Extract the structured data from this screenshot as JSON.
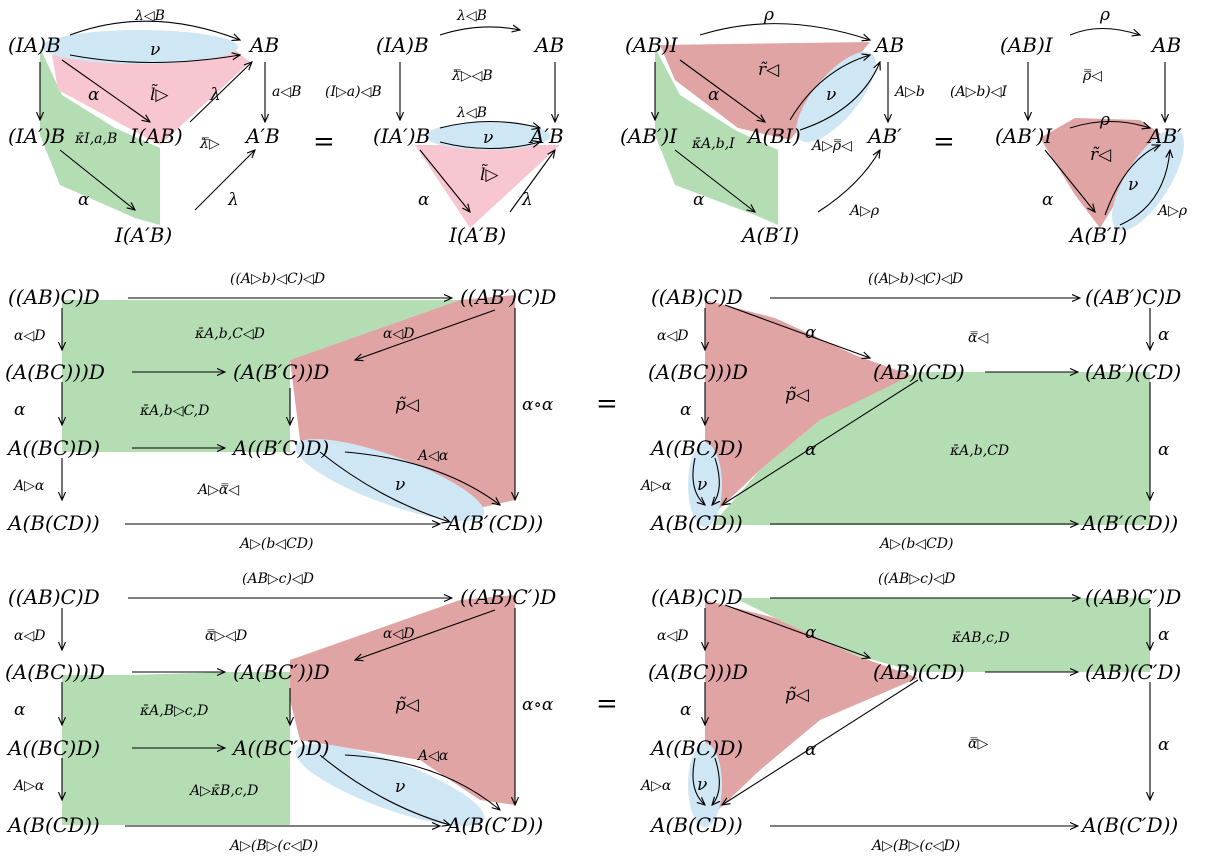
{
  "equals_sign": "=",
  "d1": {
    "objects": {
      "IA_B": "(IA)B",
      "AB": "AB",
      "IAp_B": "(IA′)B",
      "I_AB": "I(AB)",
      "ApB": "A′B",
      "I_ApB": "I(A′B)"
    },
    "labels": {
      "lam_lB": "λ◁B",
      "nu": "ν",
      "alpha1": "α",
      "l_tri": "l̃▷",
      "lam1": "λ",
      "a_lB": "a◁B",
      "kappa": "κ̄I,a,B",
      "lam_ol": "λ̿▷",
      "alpha2": "α",
      "lam2": "λ"
    }
  },
  "d2": {
    "objects": {
      "IA_B": "(IA)B",
      "AB": "AB",
      "IAp_B": "(IA′)B",
      "ApB": "A′B",
      "I_ApB": "I(A′B)"
    },
    "labels": {
      "lam_lB_top": "λ◁B",
      "lam_ol_lB": "λ̿▷◁B",
      "I_a_lB": "(I▷a)◁B",
      "lam_lB_mid": "λ◁B",
      "nu": "ν",
      "l_tri": "l̃▷",
      "alpha": "α",
      "lam": "λ"
    }
  },
  "d3": {
    "objects": {
      "AB_I": "(AB)I",
      "AB": "AB",
      "ABp_I": "(AB′)I",
      "A_BI": "A(BI)",
      "ABp": "AB′",
      "A_BpI": "A(B′I)"
    },
    "labels": {
      "rho": "ρ",
      "r_tri": "r̃◁",
      "alpha1": "α",
      "nu": "ν",
      "A_b": "A▷b",
      "kappa": "κ̄A,b,I",
      "A_rho_ol": "A▷ρ̿◁",
      "alpha2": "α",
      "A_rho": "A▷ρ"
    }
  },
  "d4": {
    "objects": {
      "AB_I": "(AB)I",
      "AB": "AB",
      "ABp_I": "(AB′)I",
      "ABp": "AB′",
      "A_BpI": "A(B′I)"
    },
    "labels": {
      "rho_top": "ρ",
      "rho_ol": "ρ̿◁",
      "A_b_lI": "(A▷b)◁I",
      "rho_mid": "ρ",
      "r_tri": "r̃◁",
      "nu": "ν",
      "alpha": "α",
      "A_rho": "A▷ρ"
    }
  },
  "d5": {
    "objects": {
      "ABC_D": "((AB)C)D",
      "ABpC_D": "((AB′)C)D",
      "A_BC_D": "(A(BC)))D",
      "A_BpC_D": "(A(B′C))D",
      "A_BCD": "A((BC)D)",
      "A_BpCD": "A((B′C)D)",
      "A_B_CD": "A(B(CD))",
      "A_Bp_CD": "A(B′(CD))"
    },
    "labels": {
      "top": "((A▷b)◁C)◁D",
      "alpha_lD": "α◁D",
      "kappa1": "κ̄A,b,C◁D",
      "alpha_lD2": "α◁D",
      "alpha_l": "α",
      "kappa2": "κ̄A,b◁C,D",
      "p_tri": "p̃◁",
      "alpha_o_alpha": "α∘α",
      "A_alpha": "A▷α",
      "A_alpha_ol": "A▷α̿◁",
      "A_lalpha": "A◁α",
      "nu": "ν",
      "bottom": "A▷(b◁CD)"
    }
  },
  "d6": {
    "objects": {
      "ABC_D": "((AB)C)D",
      "ABpC_D": "((AB′)C)D",
      "A_BC_D": "(A(BC)))D",
      "AB_CD": "(AB)(CD)",
      "ABp_CD": "(AB′)(CD)",
      "A_BCD": "A((BC)D)",
      "A_B_CD": "A(B(CD))",
      "A_Bp_CD": "A(B′(CD))"
    },
    "labels": {
      "top": "((A▷b)◁C)◁D",
      "alpha_lD": "α◁D",
      "alpha1": "α",
      "alpha_ol": "α̿◁",
      "alpha_r": "α",
      "alpha_l": "α",
      "p_tri": "p̃◁",
      "alpha2": "α",
      "kappa": "κ̄A,b,CD",
      "alpha_r2": "α",
      "A_alpha": "A▷α",
      "nu": "ν",
      "bottom": "A▷(b◁CD)"
    }
  },
  "d7": {
    "objects": {
      "ABC_D": "((AB)C)D",
      "ABCp_D": "((AB)C′)D",
      "A_BC_D": "(A(BC)))D",
      "A_BCp_D": "(A(BC′))D",
      "A_BCD": "A((BC)D)",
      "A_BCpD": "A((BC′)D)",
      "A_B_CD": "A(B(CD))",
      "A_B_CpD": "A(B(C′D))"
    },
    "labels": {
      "top": "(AB▷c)◁D",
      "alpha_lD": "α◁D",
      "alpha_ol_lD": "α̿▷◁D",
      "alpha_lD2": "α◁D",
      "alpha_l": "α",
      "kappa1": "κ̄A,B▷c,D",
      "p_tri": "p̃◁",
      "alpha_o_alpha": "α∘α",
      "A_alpha": "A▷α",
      "A_kappa": "A▷κ̄B,c,D",
      "A_lalpha": "A◁α",
      "nu": "ν",
      "bottom": "A▷(B▷(c◁D)"
    }
  },
  "d8": {
    "objects": {
      "ABC_D": "((AB)C)D",
      "ABCp_D": "((AB)C′)D",
      "A_BC_D": "(A(BC)))D",
      "AB_CD": "(AB)(CD)",
      "AB_CpD": "(AB)(C′D)",
      "A_BCD": "A((BC)D)",
      "A_B_CD": "A(B(CD))",
      "A_B_CpD": "A(B(C′D))"
    },
    "labels": {
      "top": "((AB▷c)◁D",
      "alpha_lD": "α◁D",
      "alpha1": "α",
      "kappa": "κ̄AB,c,D",
      "alpha_r": "α",
      "alpha_l": "α",
      "p_tri": "p̃◁",
      "alpha_ol": "α̿▷",
      "alpha2": "α",
      "alpha_r2": "α",
      "A_alpha": "A▷α",
      "nu": "ν",
      "bottom": "A▷(B▷(c◁D)"
    }
  }
}
